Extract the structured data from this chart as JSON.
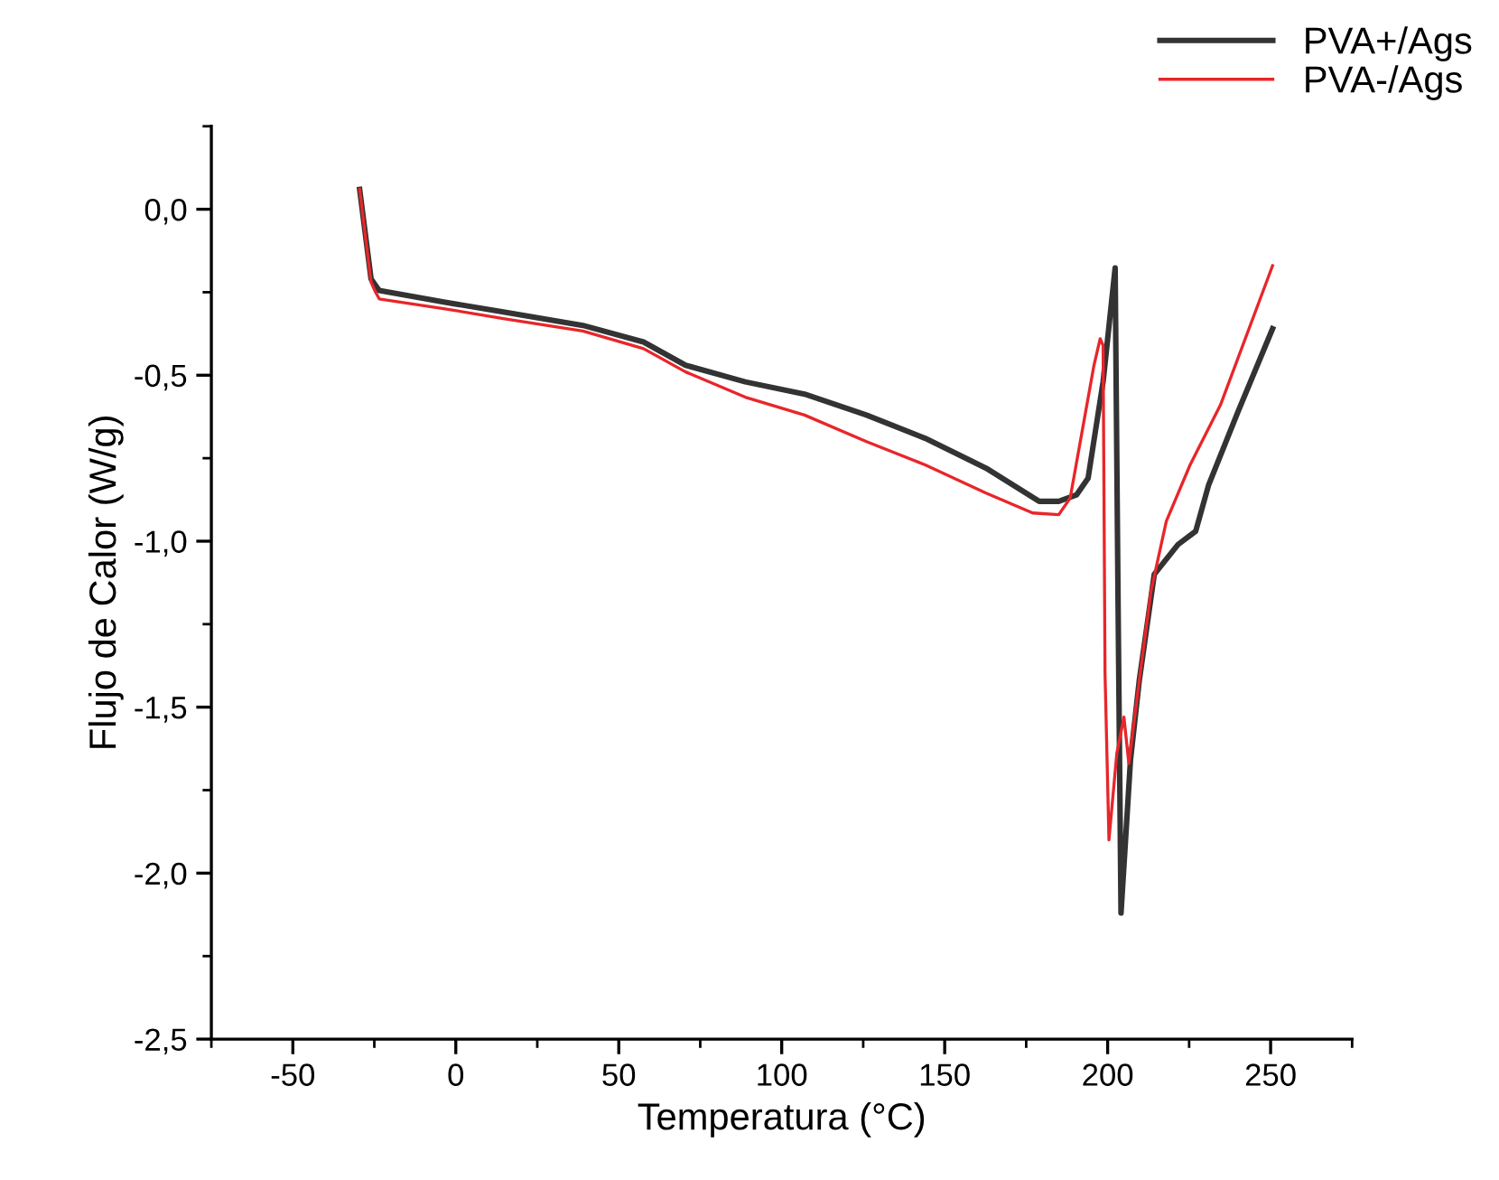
{
  "chart_data": {
    "type": "line",
    "xlabel": "Temperatura (°C)",
    "ylabel": "Flujo de Calor (W/g)",
    "xlim": [
      -75,
      275
    ],
    "xticks": [
      -50,
      0,
      50,
      100,
      150,
      200,
      250
    ],
    "ylim": [
      -2.5,
      0.25
    ],
    "yticks": [
      {
        "value": -2.5,
        "label": "-2,5"
      },
      {
        "value": -2.0,
        "label": "-2,0"
      },
      {
        "value": -1.5,
        "label": "-1,5"
      },
      {
        "value": -1.0,
        "label": "-1,0"
      },
      {
        "value": -0.5,
        "label": "-0,5"
      },
      {
        "value": 0.0,
        "label": "0,0"
      }
    ],
    "grid": false,
    "legend": "top right",
    "marker": "none",
    "line_style": "solid",
    "series": [
      {
        "name": "PVA+/Ags",
        "color": "#333333",
        "x": [
          -29.5,
          -26,
          -24.6,
          -23.5,
          -3.3,
          15,
          39,
          57.6,
          70.5,
          88.8,
          107,
          126,
          144,
          162.7,
          179,
          185,
          190.5,
          194,
          198.6,
          202.3,
          203.2,
          204.1,
          207,
          209.7,
          214.3,
          221.6,
          227,
          231,
          240,
          250.6
        ],
        "values": [
          0.06,
          -0.21,
          -0.23,
          -0.245,
          -0.28,
          -0.31,
          -0.35,
          -0.4,
          -0.47,
          -0.52,
          -0.557,
          -0.62,
          -0.69,
          -0.78,
          -0.88,
          -0.88,
          -0.86,
          -0.81,
          -0.52,
          -0.177,
          -1.19,
          -2.12,
          -1.66,
          -1.42,
          -1.1,
          -1.01,
          -0.97,
          -0.83,
          -0.61,
          -0.36
        ]
      },
      {
        "name": "PVA-/Ags",
        "color": "#e8262a",
        "x": [
          -29.5,
          -26,
          -24.6,
          -23.5,
          -3.3,
          15,
          39,
          57.6,
          70.5,
          88.8,
          107,
          126,
          144,
          162.7,
          177,
          185,
          188.5,
          195.8,
          197.7,
          198.6,
          199.2,
          200.4,
          202.8,
          205,
          206.5,
          209.7,
          213.3,
          218,
          225.3,
          234.6,
          250.6
        ],
        "values": [
          0.06,
          -0.22,
          -0.25,
          -0.27,
          -0.3,
          -0.33,
          -0.367,
          -0.42,
          -0.49,
          -0.566,
          -0.62,
          -0.7,
          -0.77,
          -0.855,
          -0.915,
          -0.92,
          -0.87,
          -0.47,
          -0.39,
          -0.41,
          -1.4,
          -1.9,
          -1.64,
          -1.53,
          -1.67,
          -1.42,
          -1.15,
          -0.94,
          -0.77,
          -0.59,
          -0.17
        ]
      }
    ]
  }
}
